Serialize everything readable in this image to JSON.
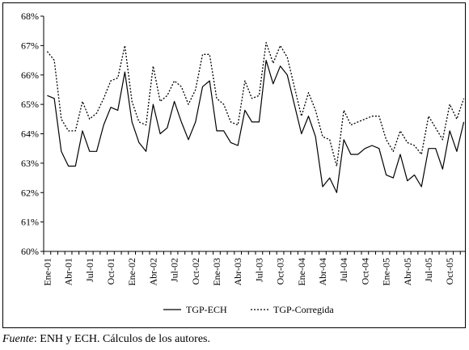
{
  "chart_data": {
    "type": "line",
    "title": "",
    "xlabel": "",
    "ylabel": "",
    "ylim": [
      60,
      68
    ],
    "y_ticks": [
      "60%",
      "61%",
      "62%",
      "63%",
      "64%",
      "65%",
      "66%",
      "67%",
      "68%"
    ],
    "x_tick_labels": [
      "Ene-01",
      "Abr-01",
      "Jul-01",
      "Oct-01",
      "Ene-02",
      "Abr-02",
      "Jul-02",
      "Oct-02",
      "Ene-03",
      "Abr-03",
      "Jul-03",
      "Oct-03",
      "Ene-04",
      "Abr-04",
      "Jul-04",
      "Oct-04",
      "Ene-05",
      "Abr-05",
      "Jul-05",
      "Oct-05"
    ],
    "x_start": "Ene-01",
    "x_frequency": "monthly",
    "grid": false,
    "legend_position": "bottom-center",
    "series": [
      {
        "name": "TGP-ECH",
        "style": "solid",
        "color": "#000000",
        "values": [
          65.3,
          65.2,
          63.4,
          62.9,
          62.9,
          64.1,
          63.4,
          63.4,
          64.3,
          64.9,
          64.8,
          66.1,
          64.4,
          63.7,
          63.4,
          65.0,
          64.0,
          64.2,
          65.1,
          64.4,
          63.8,
          64.4,
          65.6,
          65.8,
          64.1,
          64.1,
          63.7,
          63.6,
          64.8,
          64.4,
          64.4,
          66.5,
          65.7,
          66.3,
          66.0,
          65.0,
          64.0,
          64.6,
          63.9,
          62.2,
          62.5,
          62.0,
          63.8,
          63.3,
          63.3,
          63.5,
          63.6,
          63.5,
          62.6,
          62.5,
          63.3,
          62.4,
          62.6,
          62.2,
          63.5,
          63.5,
          62.8,
          64.1,
          63.4,
          64.4
        ]
      },
      {
        "name": "TGP-Corregida",
        "style": "dotted",
        "color": "#000000",
        "values": [
          66.8,
          66.5,
          64.5,
          64.1,
          64.1,
          65.1,
          64.5,
          64.7,
          65.2,
          65.8,
          65.9,
          67.0,
          65.1,
          64.4,
          64.3,
          66.3,
          65.1,
          65.3,
          65.8,
          65.6,
          65.0,
          65.5,
          66.7,
          66.7,
          65.2,
          65.0,
          64.4,
          64.3,
          65.8,
          65.2,
          65.3,
          67.1,
          66.4,
          67.0,
          66.6,
          65.6,
          64.6,
          65.4,
          64.8,
          63.9,
          63.8,
          62.9,
          64.8,
          64.3,
          64.4,
          64.5,
          64.6,
          64.6,
          63.8,
          63.4,
          64.1,
          63.7,
          63.6,
          63.3,
          64.6,
          64.2,
          63.8,
          65.0,
          64.5,
          65.2
        ]
      }
    ]
  },
  "footnote": {
    "label": "Fuente",
    "text": ": ENH y ECH. Cálculos de los autores."
  }
}
